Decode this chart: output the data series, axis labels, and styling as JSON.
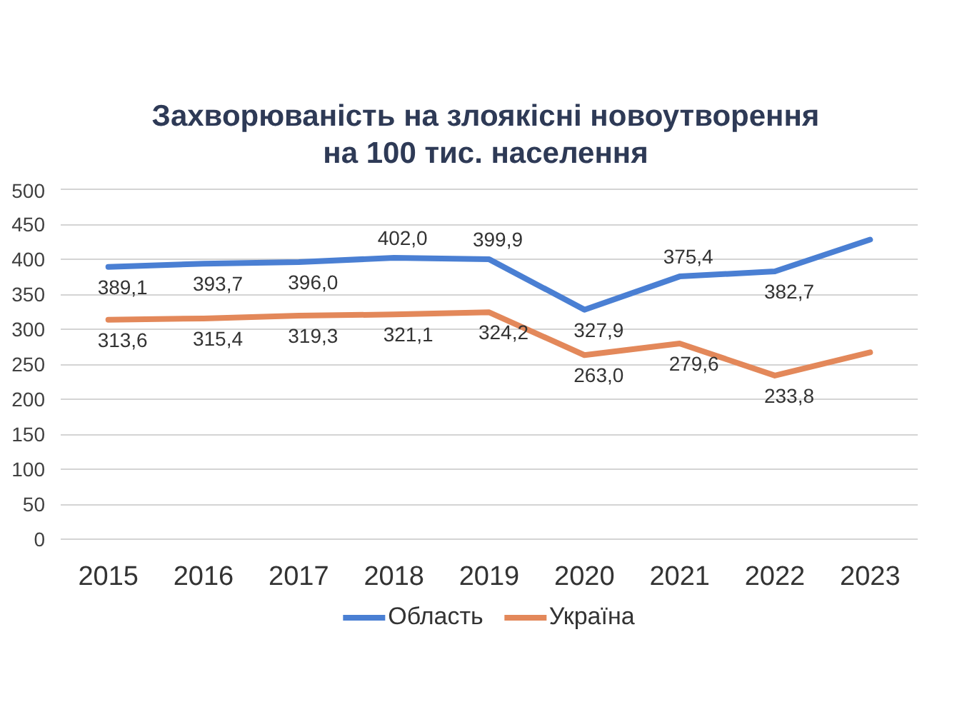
{
  "chart_data": {
    "type": "line",
    "title": "Захворюваність на злоякісні новоутворення на 100 тис. населення",
    "categories": [
      "2015",
      "2016",
      "2017",
      "2018",
      "2019",
      "2020",
      "2021",
      "2022",
      "2023"
    ],
    "series": [
      {
        "name": "Область",
        "color": "#4a7fd3",
        "values": [
          389.1,
          393.7,
          396.0,
          402.0,
          399.9,
          327.9,
          375.4,
          382.7,
          428
        ],
        "value_labels": [
          "389,1",
          "393,7",
          "396,0",
          "402,0",
          "399,9",
          "327,9",
          "375,4",
          "382,7",
          null
        ]
      },
      {
        "name": "Україна",
        "color": "#e3885a",
        "values": [
          313.6,
          315.4,
          319.3,
          321.1,
          324.2,
          263.0,
          279.6,
          233.8,
          267
        ],
        "value_labels": [
          "313,6",
          "315,4",
          "319,3",
          "321,1",
          "324,2",
          "263,0",
          "279,6",
          "233,8",
          null
        ]
      }
    ],
    "ylim": [
      0,
      500
    ],
    "yticks": [
      0,
      50,
      100,
      150,
      200,
      250,
      300,
      350,
      400,
      450,
      500
    ],
    "grid": "y",
    "legend": "bottom",
    "marker": "none",
    "line_style": "solid"
  }
}
